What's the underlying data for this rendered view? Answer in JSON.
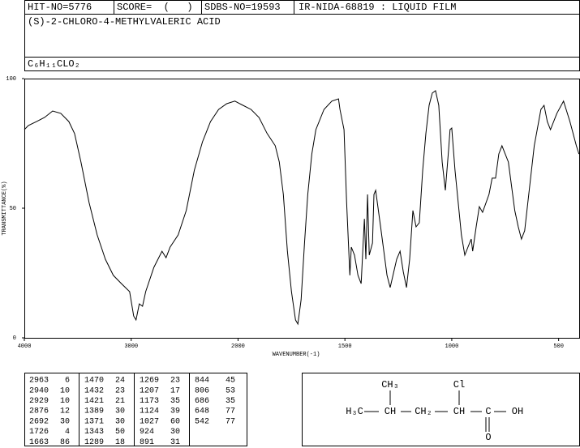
{
  "header": {
    "hit_no": "HIT-NO=5776",
    "score": "SCORE=  (   )",
    "sdbs_no": "SDBS-NO=19593",
    "method": "IR-NIDA-68819 : LIQUID FILM",
    "name": "(S)-2-CHLORO-4-METHYLVALERIC ACID",
    "formula": "C₆H₁₁CLO₂"
  },
  "chart_data": {
    "type": "line",
    "xlabel": "WAVENUMBER(-1)",
    "ylabel": "TRANSMITTANCE(%)",
    "color": "#000000",
    "xlim": [
      4000,
      400
    ],
    "x_scale_break": 2000,
    "x_scale_factor": 2,
    "xticks": [
      4000,
      3000,
      2000,
      1500,
      1000,
      500
    ],
    "ylim": [
      0,
      100
    ],
    "yticks": [
      0,
      50,
      100
    ],
    "x": [
      4000,
      3962,
      3886,
      3811,
      3735,
      3659,
      3583,
      3530,
      3470,
      3394,
      3318,
      3242,
      3167,
      3091,
      3015,
      2977,
      2955,
      2924,
      2894,
      2864,
      2788,
      2712,
      2674,
      2636,
      2561,
      2485,
      2409,
      2333,
      2258,
      2182,
      2106,
      2030,
      1977,
      1939,
      1902,
      1864,
      1826,
      1807,
      1788,
      1769,
      1750,
      1731,
      1720,
      1705,
      1689,
      1674,
      1655,
      1636,
      1598,
      1561,
      1530,
      1523,
      1504,
      1492,
      1477,
      1470,
      1455,
      1439,
      1424,
      1409,
      1402,
      1394,
      1386,
      1371,
      1364,
      1356,
      1333,
      1303,
      1288,
      1258,
      1242,
      1227,
      1212,
      1197,
      1182,
      1167,
      1152,
      1136,
      1121,
      1106,
      1091,
      1076,
      1061,
      1045,
      1030,
      1015,
      1008,
      1000,
      985,
      955,
      939,
      924,
      909,
      902,
      886,
      871,
      856,
      826,
      811,
      795,
      780,
      765,
      735,
      705,
      689,
      674,
      659,
      644,
      614,
      583,
      568,
      553,
      538,
      508,
      477,
      447,
      417,
      405
    ],
    "values": [
      80.3,
      81.9,
      83.4,
      85.0,
      87.5,
      86.6,
      83.4,
      78.8,
      67.8,
      52.2,
      39.7,
      30.3,
      24.1,
      20.9,
      17.8,
      8.4,
      6.9,
      13.1,
      12.2,
      17.8,
      27.2,
      33.4,
      30.9,
      35.0,
      39.7,
      49.1,
      64.7,
      75.6,
      83.4,
      88.1,
      90.3,
      91.3,
      89.7,
      88.1,
      85.0,
      78.8,
      74.1,
      67.8,
      55.3,
      33.4,
      17.8,
      6.9,
      5.3,
      14.7,
      36.6,
      55.3,
      70.9,
      80.3,
      88.1,
      91.3,
      92.2,
      88.1,
      80.3,
      52.2,
      24.1,
      35.0,
      31.9,
      24.1,
      20.9,
      45.9,
      30.3,
      55.3,
      31.9,
      36.6,
      55.3,
      56.9,
      42.8,
      24.1,
      19.4,
      30.3,
      33.4,
      25.6,
      19.4,
      30.3,
      49.1,
      42.8,
      44.4,
      64.7,
      78.8,
      89.7,
      94.4,
      95.3,
      89.7,
      67.8,
      56.9,
      72.5,
      80.3,
      80.9,
      64.7,
      39.7,
      31.9,
      35.0,
      38.1,
      33.4,
      42.8,
      50.6,
      48.4,
      55.3,
      61.6,
      61.6,
      70.9,
      74.1,
      67.8,
      49.1,
      42.8,
      38.1,
      41.3,
      52.2,
      74.1,
      88.1,
      89.7,
      83.4,
      80.3,
      86.6,
      91.3,
      83.4,
      74.1,
      70.9
    ]
  },
  "peak_table": {
    "columns": [
      [
        [
          2963,
          6
        ],
        [
          2940,
          10
        ],
        [
          2929,
          10
        ],
        [
          2876,
          12
        ],
        [
          2692,
          30
        ],
        [
          1726,
          4
        ],
        [
          1663,
          86
        ]
      ],
      [
        [
          1470,
          24
        ],
        [
          1432,
          23
        ],
        [
          1421,
          21
        ],
        [
          1389,
          30
        ],
        [
          1371,
          30
        ],
        [
          1343,
          50
        ],
        [
          1289,
          18
        ]
      ],
      [
        [
          1269,
          23
        ],
        [
          1207,
          17
        ],
        [
          1173,
          35
        ],
        [
          1124,
          39
        ],
        [
          1027,
          60
        ],
        [
          924,
          30
        ],
        [
          891,
          31
        ]
      ],
      [
        [
          844,
          45
        ],
        [
          806,
          53
        ],
        [
          686,
          35
        ],
        [
          648,
          77
        ],
        [
          542,
          77
        ]
      ]
    ]
  },
  "structure": {
    "atoms": [
      "CH₃",
      "Cl",
      "H₃C",
      "CH",
      "CH₂",
      "CH",
      "C",
      "OH",
      "O"
    ]
  }
}
